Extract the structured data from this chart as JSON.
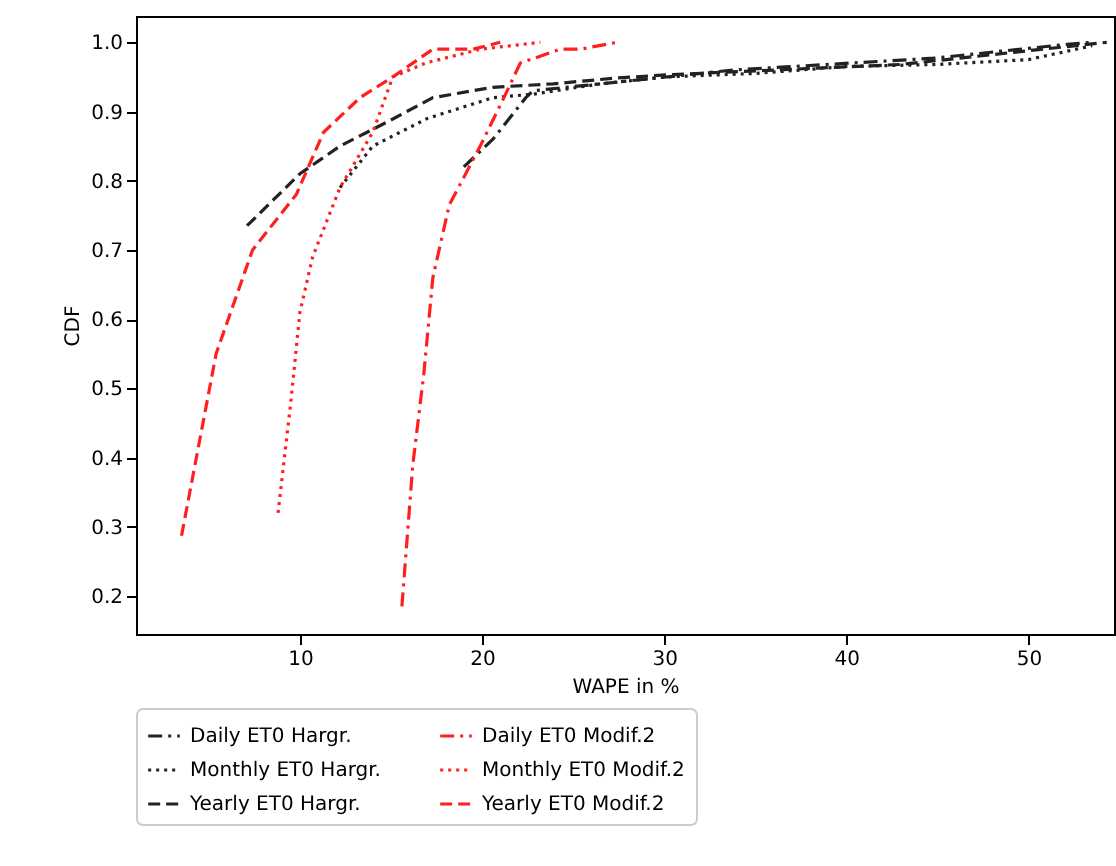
{
  "chart_data": {
    "type": "line",
    "xlabel": "WAPE in %",
    "ylabel": "CDF",
    "xlim": [
      1.0,
      54.7
    ],
    "ylim": [
      0.145,
      1.038
    ],
    "xticks": [
      10,
      20,
      30,
      40,
      50
    ],
    "yticks": [
      0.2,
      0.3,
      0.4,
      0.5,
      0.6,
      0.7,
      0.8,
      0.9,
      {
        "value": 1,
        "label": "1.0"
      }
    ],
    "grid": false,
    "legend": "bottom",
    "series": [
      {
        "name": "Daily ET0 Hargr.",
        "color": "#222222",
        "line_style": "dashdot",
        "x": [
          19,
          20.6,
          22.4,
          22.8,
          26.5,
          33.8,
          44.8,
          52.1,
          53.6
        ],
        "values": [
          0.82,
          0.86,
          0.92,
          0.93,
          0.94,
          0.96,
          0.977,
          0.997,
          1.0
        ]
      },
      {
        "name": "Monthly ET0 Hargr.",
        "color": "#222222",
        "line_style": "dotted",
        "x": [
          12.2,
          14,
          17,
          20.6,
          22.8,
          26.5,
          30.1,
          35,
          40,
          45,
          50,
          53.5
        ],
        "values": [
          0.79,
          0.85,
          0.89,
          0.92,
          0.925,
          0.94,
          0.95,
          0.955,
          0.965,
          0.968,
          0.975,
          0.995
        ]
      },
      {
        "name": "Yearly ET0 Hargr.",
        "color": "#222222",
        "line_style": "dashed",
        "x": [
          7.1,
          10,
          12.2,
          14.8,
          17.3,
          20.6,
          23.9,
          27.2,
          30.1,
          43,
          54.3
        ],
        "values": [
          0.735,
          0.81,
          0.85,
          0.885,
          0.92,
          0.935,
          0.94,
          0.948,
          0.953,
          0.968,
          1.0
        ]
      },
      {
        "name": "Daily ET0 Modif.2",
        "color": "#ff1f1f",
        "line_style": "dashdot",
        "x": [
          15.6,
          16.2,
          16.8,
          17.3,
          18.2,
          19.9,
          21.2,
          22.1,
          24.3,
          25.4,
          27.4
        ],
        "values": [
          0.185,
          0.39,
          0.52,
          0.66,
          0.765,
          0.85,
          0.92,
          0.97,
          0.99,
          0.99,
          1.0
        ]
      },
      {
        "name": "Monthly ET0 Modif.2",
        "color": "#ff1f1f",
        "line_style": "dotted",
        "x": [
          8.8,
          9.5,
          10,
          10.7,
          12.2,
          14,
          15.1,
          16.9,
          19.9,
          23.2
        ],
        "values": [
          0.32,
          0.48,
          0.61,
          0.69,
          0.79,
          0.87,
          0.95,
          0.97,
          0.99,
          1.0
        ]
      },
      {
        "name": "Yearly ET0 Modif.2",
        "color": "#ff1f1f",
        "line_style": "dashed",
        "x": [
          3.5,
          5.4,
          7.4,
          9.8,
          11.3,
          13.3,
          15.1,
          17.3,
          19.5,
          21
        ],
        "values": [
          0.287,
          0.55,
          0.7,
          0.78,
          0.87,
          0.92,
          0.95,
          0.99,
          0.99,
          1.0
        ]
      }
    ]
  }
}
